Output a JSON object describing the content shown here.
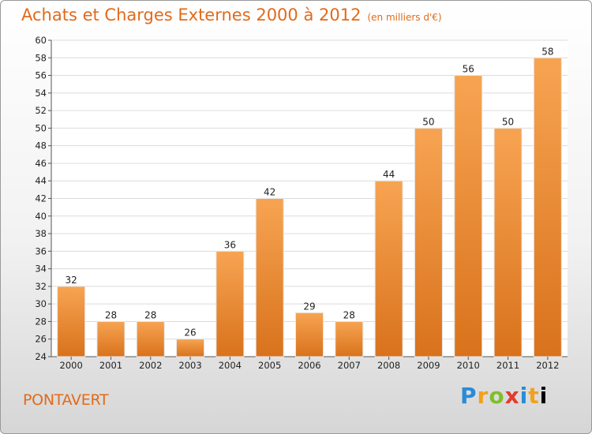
{
  "chart_data": {
    "type": "bar",
    "title": "Achats et Charges Externes 2000 à 2012",
    "unit_label": "(en milliers d'€)",
    "categories": [
      "2000",
      "2001",
      "2002",
      "2003",
      "2004",
      "2005",
      "2006",
      "2007",
      "2008",
      "2009",
      "2010",
      "2011",
      "2012"
    ],
    "values": [
      32,
      28,
      28,
      26,
      36,
      42,
      29,
      28,
      44,
      50,
      56,
      50,
      58
    ],
    "ylim": [
      24,
      60
    ],
    "yticks": [
      24,
      26,
      28,
      30,
      32,
      34,
      36,
      38,
      40,
      42,
      44,
      46,
      48,
      50,
      52,
      54,
      56,
      58,
      60
    ],
    "bar_color": "#f0943e",
    "grid": true
  },
  "place": "PONTAVERT",
  "brand": "Proxiti",
  "brand_letters": [
    "P",
    "r",
    "o",
    "x",
    "i",
    "t",
    "i"
  ]
}
